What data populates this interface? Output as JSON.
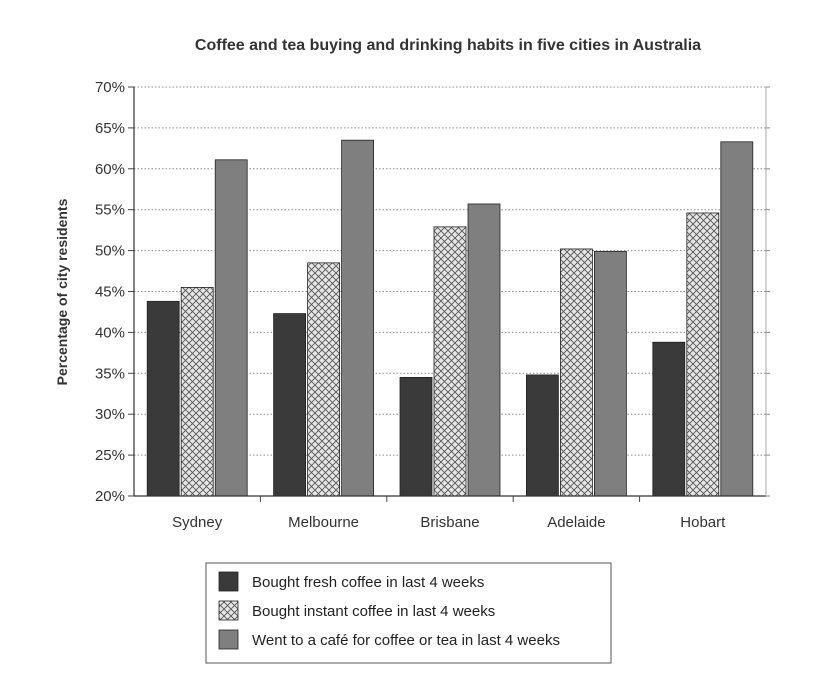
{
  "chart_data": {
    "type": "bar",
    "title": "Coffee and tea buying and drinking habits in five cities in Australia",
    "xlabel": "",
    "ylabel": "Percentage of city residents",
    "ylim": [
      20,
      70
    ],
    "yticks": [
      "20%",
      "25%",
      "30%",
      "35%",
      "40%",
      "45%",
      "50%",
      "55%",
      "60%",
      "65%",
      "70%"
    ],
    "categories": [
      "Sydney",
      "Melbourne",
      "Brisbane",
      "Adelaide",
      "Hobart"
    ],
    "series": [
      {
        "name": "Bought fresh coffee in last 4 weeks",
        "values": [
          43.8,
          42.3,
          34.5,
          34.8,
          38.8
        ],
        "color": "#3a3a3a",
        "pattern": "solid"
      },
      {
        "name": "Bought instant coffee in last 4 weeks",
        "values": [
          45.5,
          48.5,
          52.9,
          50.2,
          54.6
        ],
        "color": "#dcdcdc",
        "pattern": "crosshatch"
      },
      {
        "name": "Went to a café for coffee or tea in last 4 weeks",
        "values": [
          61.1,
          63.5,
          55.7,
          49.9,
          63.3
        ],
        "color": "#7f7f7f",
        "pattern": "solid"
      }
    ],
    "grid": true,
    "legend": "bottom-center"
  }
}
